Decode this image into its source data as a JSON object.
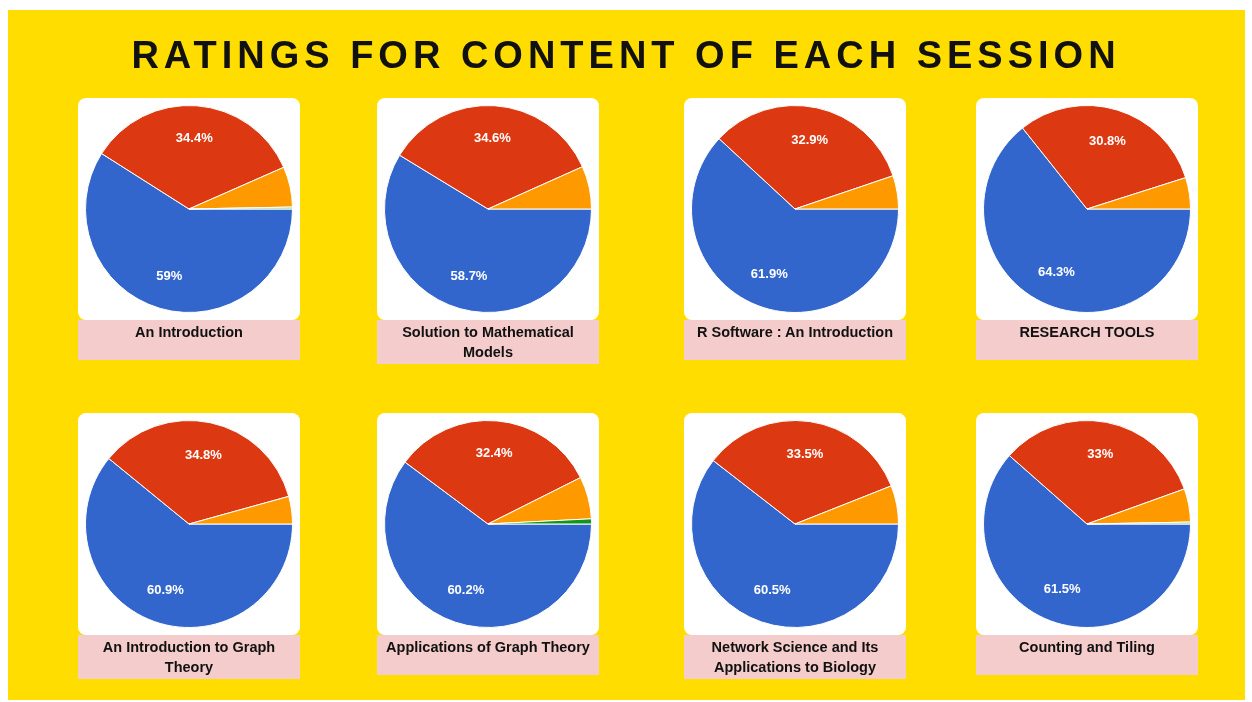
{
  "chart_data": [
    {
      "type": "other",
      "title": "RATINGS FOR CONTENT OF EACH SESSION"
    },
    {
      "type": "pie",
      "title": "An Introduction",
      "categories": [
        null,
        null,
        null,
        null
      ],
      "values": [
        59,
        34.4,
        6.3,
        0.3
      ],
      "colors": [
        "#3366cc",
        "#dc3912",
        "#ff9900",
        "#8fcf8a"
      ],
      "value_labels": [
        "59%",
        "34.4%",
        null,
        null
      ]
    },
    {
      "type": "pie",
      "title": "Solution to Mathematical Models",
      "categories": [
        null,
        null,
        null
      ],
      "values": [
        58.7,
        34.6,
        6.7
      ],
      "colors": [
        "#3366cc",
        "#dc3912",
        "#ff9900"
      ],
      "value_labels": [
        "58.7%",
        "34.6%",
        null
      ]
    },
    {
      "type": "pie",
      "title": "R Software : An Introduction",
      "categories": [
        null,
        null,
        null
      ],
      "values": [
        61.9,
        32.9,
        5.2
      ],
      "colors": [
        "#3366cc",
        "#dc3912",
        "#ff9900"
      ],
      "value_labels": [
        "61.9%",
        "32.9%",
        null
      ]
    },
    {
      "type": "pie",
      "title": "RESEARCH TOOLS",
      "categories": [
        null,
        null,
        null
      ],
      "values": [
        64.3,
        30.8,
        4.9
      ],
      "colors": [
        "#3366cc",
        "#dc3912",
        "#ff9900"
      ],
      "value_labels": [
        "64.3%",
        "30.8%",
        null
      ]
    },
    {
      "type": "pie",
      "title": "An Introduction to Graph Theory",
      "categories": [
        null,
        null,
        null
      ],
      "values": [
        60.9,
        34.8,
        4.3
      ],
      "colors": [
        "#3366cc",
        "#dc3912",
        "#ff9900"
      ],
      "value_labels": [
        "60.9%",
        "34.8%",
        null
      ]
    },
    {
      "type": "pie",
      "title": "Applications of Graph Theory",
      "categories": [
        null,
        null,
        null,
        null
      ],
      "values": [
        60.2,
        32.4,
        6.6,
        0.8
      ],
      "colors": [
        "#3366cc",
        "#dc3912",
        "#ff9900",
        "#109618"
      ],
      "value_labels": [
        "60.2%",
        "32.4%",
        null,
        null
      ]
    },
    {
      "type": "pie",
      "title": "Network Science and Its Applications to Biology",
      "categories": [
        null,
        null,
        null
      ],
      "values": [
        60.5,
        33.5,
        6.0
      ],
      "colors": [
        "#3366cc",
        "#dc3912",
        "#ff9900"
      ],
      "value_labels": [
        "60.5%",
        "33.5%",
        null
      ]
    },
    {
      "type": "pie",
      "title": "Counting and Tiling",
      "categories": [
        null,
        null,
        null,
        null
      ],
      "values": [
        61.5,
        33,
        5.2,
        0.3
      ],
      "colors": [
        "#3366cc",
        "#dc3912",
        "#ff9900",
        "#8fcf8a"
      ],
      "value_labels": [
        "61.5%",
        "33%",
        null,
        null
      ]
    }
  ]
}
